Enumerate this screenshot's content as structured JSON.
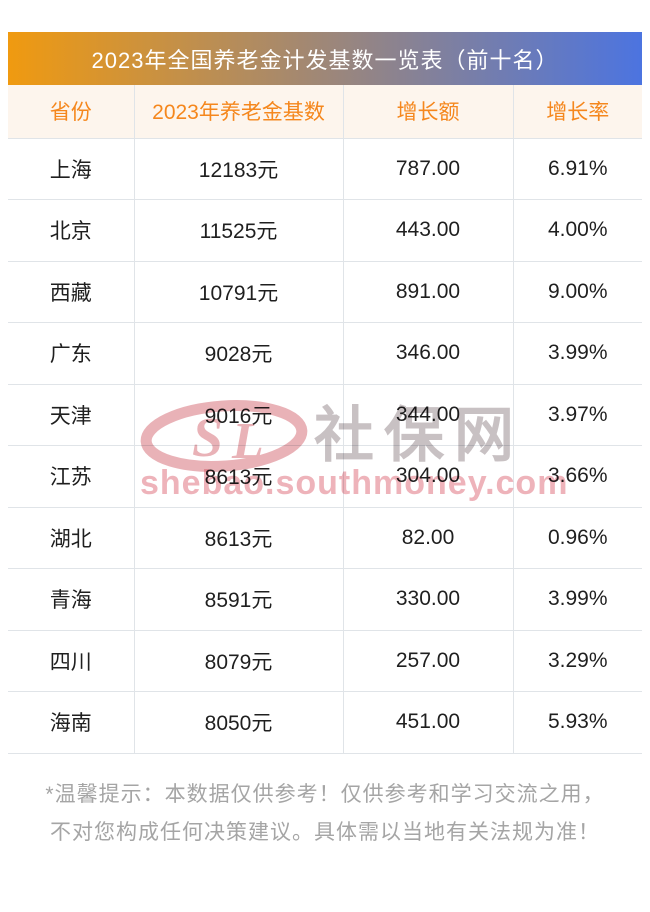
{
  "banner": {
    "title": "2023年全国养老金计发基数一览表（前十名）"
  },
  "chart_data": {
    "type": "table",
    "title": "2023年全国养老金计发基数一览表（前十名）",
    "columns": [
      "省份",
      "2023年养老金基数",
      "增长额",
      "增长率"
    ],
    "rows": [
      [
        "上海",
        "12183元",
        "787.00",
        "6.91%"
      ],
      [
        "北京",
        "11525元",
        "443.00",
        "4.00%"
      ],
      [
        "西藏",
        "10791元",
        "891.00",
        "9.00%"
      ],
      [
        "广东",
        "9028元",
        "346.00",
        "3.99%"
      ],
      [
        "天津",
        "9016元",
        "344.00",
        "3.97%"
      ],
      [
        "江苏",
        "8613元",
        "304.00",
        "3.66%"
      ],
      [
        "湖北",
        "8613元",
        "82.00",
        "0.96%"
      ],
      [
        "青海",
        "8591元",
        "330.00",
        "3.99%"
      ],
      [
        "四川",
        "8079元",
        "257.00",
        "3.29%"
      ],
      [
        "海南",
        "8050元",
        "451.00",
        "5.93%"
      ]
    ]
  },
  "watermark": {
    "logo_icon": "southmoney-logo-icon",
    "site_name": "社保网",
    "domain": "shebao.southmoney.com"
  },
  "footer": {
    "line1": "*温馨提示：本数据仅供参考！仅供参考和学习交流之用，",
    "line2": "不对您构成任何决策建议。具体需以当地有关法规为准！"
  },
  "colors": {
    "banner_gradient_start": "#f09a10",
    "banner_gradient_end": "#4c74e0",
    "header_bg": "#fdf5ed",
    "header_text": "#f5871d",
    "border": "#e0e4e8",
    "cell_text": "#1f1f1f",
    "footer_text": "#a5a5a5",
    "watermark_pink": "#eeb3ba",
    "watermark_gray": "#c8c1c3",
    "watermark_red": "#cf5560"
  }
}
